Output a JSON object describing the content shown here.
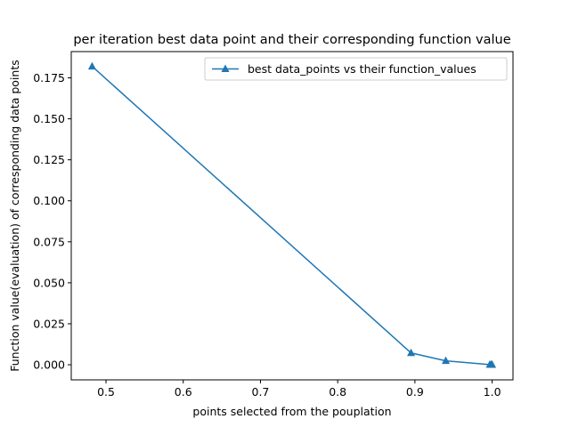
{
  "chart_data": {
    "type": "line",
    "title": "per iteration best data point and their corresponding function value",
    "xlabel": "points selected from the pouplation",
    "ylabel": "Function value(evaluation) of corresponding data points",
    "xlim": [
      0.455,
      1.027
    ],
    "ylim": [
      -0.0092,
      0.191
    ],
    "xticks": [
      0.5,
      0.6,
      0.7,
      0.8,
      0.9,
      1.0
    ],
    "xtick_labels": [
      "0.5",
      "0.6",
      "0.7",
      "0.8",
      "0.9",
      "1.0"
    ],
    "yticks": [
      0.0,
      0.025,
      0.05,
      0.075,
      0.1,
      0.125,
      0.15,
      0.175
    ],
    "ytick_labels": [
      "0.000",
      "0.025",
      "0.050",
      "0.075",
      "0.100",
      "0.125",
      "0.150",
      "0.175"
    ],
    "grid": false,
    "legend_position": "upper-right",
    "series": [
      {
        "name": "best data_points vs their function_values",
        "color": "#1f77b4",
        "marker": "triangle-up",
        "x": [
          0.482,
          0.895,
          0.94,
          0.997,
          0.999,
          1.0
        ],
        "y": [
          0.182,
          0.0072,
          0.0024,
          0.0001,
          2e-05,
          0.0
        ]
      }
    ]
  }
}
